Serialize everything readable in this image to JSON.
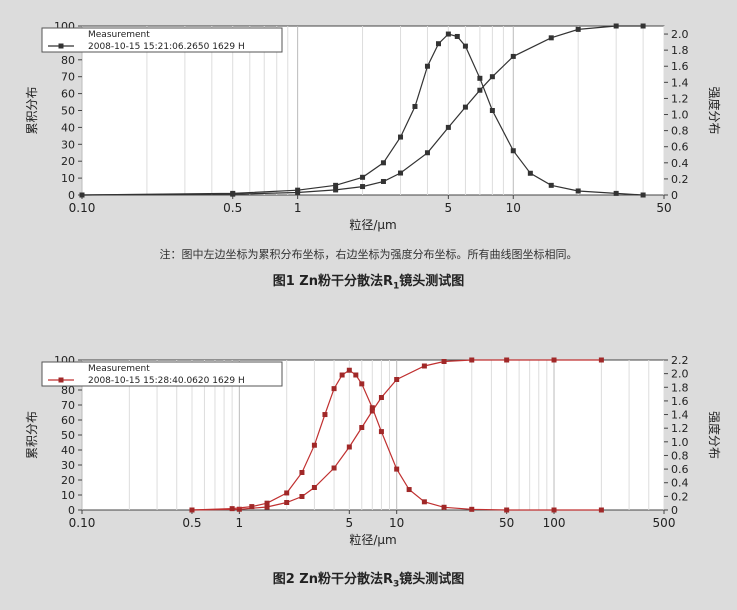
{
  "note": "注：图中左边坐标为累积分布坐标，右边坐标为强度分布坐标。所有曲线图坐标相同。",
  "figure1_caption": "图1   Zn粉干分散法R",
  "figure1_caption_sub": "1",
  "figure1_caption_rest": "镜头测试图",
  "figure2_caption": "图2   Zn粉干分散法R",
  "figure2_caption_sub": "3",
  "figure2_caption_rest": "镜头测试图",
  "chart_data": [
    {
      "type": "line",
      "title": "",
      "xlabel": "粒径/μm",
      "ylabel": "累积分布",
      "y2label": "强度分布",
      "x_scale": "log",
      "xlim": [
        0.1,
        50
      ],
      "ylim": [
        0,
        100
      ],
      "y2lim": [
        0,
        2.1
      ],
      "xticks": [
        "0.10",
        "0.5",
        "1",
        "5",
        "10",
        "50"
      ],
      "yticks": [
        "0",
        "10",
        "20",
        "30",
        "40",
        "50",
        "60",
        "70",
        "80",
        "90",
        "100"
      ],
      "y2ticks": [
        "0",
        "0.2",
        "0.4",
        "0.6",
        "0.8",
        "1.0",
        "1.2",
        "1.4",
        "1.6",
        "1.8",
        "2.0"
      ],
      "legend": {
        "label": "Measurement",
        "sub": "2008-10-15 15:21:06.2650 1629 H",
        "position": "top-left"
      },
      "line_color": "#333333",
      "marker_color": "#333333",
      "series": [
        {
          "axis": "left",
          "x": [
            0.1,
            0.5,
            1,
            1.5,
            2,
            2.5,
            3,
            4,
            5,
            6,
            7,
            8,
            10,
            15,
            20,
            30,
            40
          ],
          "y": [
            0,
            0.5,
            1.5,
            3,
            5,
            8,
            13,
            25,
            40,
            52,
            62,
            70,
            82,
            93,
            98,
            100,
            100
          ]
        },
        {
          "axis": "right",
          "x": [
            0.1,
            0.5,
            1,
            1.5,
            2,
            2.5,
            3,
            3.5,
            4,
            4.5,
            5,
            5.5,
            6,
            7,
            8,
            10,
            12,
            15,
            20,
            30,
            40
          ],
          "y": [
            0,
            0.02,
            0.06,
            0.12,
            0.22,
            0.4,
            0.72,
            1.1,
            1.6,
            1.88,
            2.0,
            1.97,
            1.85,
            1.45,
            1.05,
            0.55,
            0.27,
            0.12,
            0.05,
            0.02,
            0
          ]
        }
      ]
    },
    {
      "type": "line",
      "title": "",
      "xlabel": "粒径/μm",
      "ylabel": "累积分布",
      "y2label": "强度分布",
      "x_scale": "log",
      "xlim": [
        0.1,
        500
      ],
      "ylim": [
        0,
        100
      ],
      "y2lim": [
        0,
        2.2
      ],
      "xticks": [
        "0.10",
        "0.5",
        "1",
        "5",
        "10",
        "50",
        "100",
        "500"
      ],
      "yticks": [
        "0",
        "10",
        "20",
        "30",
        "40",
        "50",
        "60",
        "70",
        "80",
        "90",
        "100"
      ],
      "y2ticks": [
        "0",
        "0.2",
        "0.4",
        "0.6",
        "0.8",
        "1.0",
        "1.2",
        "1.4",
        "1.6",
        "1.8",
        "2.0",
        "2.2"
      ],
      "legend": {
        "label": "Measurement",
        "sub": "2008-10-15 15:28:40.0620 1629 H",
        "position": "top-left"
      },
      "line_color": "#c03030",
      "marker_color": "#a02828",
      "series": [
        {
          "axis": "left",
          "x": [
            0.5,
            1,
            1.5,
            2,
            2.5,
            3,
            4,
            5,
            6,
            7,
            8,
            10,
            15,
            20,
            30,
            50,
            100,
            200
          ],
          "y": [
            0,
            0.5,
            2,
            5,
            9,
            15,
            28,
            42,
            55,
            66,
            75,
            87,
            96,
            99,
            100,
            100,
            100,
            100
          ]
        },
        {
          "axis": "right",
          "x": [
            0.5,
            0.9,
            1.2,
            1.5,
            2,
            2.5,
            3,
            3.5,
            4,
            4.5,
            5,
            5.5,
            6,
            7,
            8,
            10,
            12,
            15,
            20,
            30,
            50,
            100,
            200
          ],
          "y": [
            0,
            0.02,
            0.05,
            0.1,
            0.25,
            0.55,
            0.95,
            1.4,
            1.78,
            1.98,
            2.05,
            1.98,
            1.85,
            1.5,
            1.15,
            0.6,
            0.3,
            0.12,
            0.04,
            0.01,
            0,
            0,
            0
          ]
        }
      ]
    }
  ]
}
